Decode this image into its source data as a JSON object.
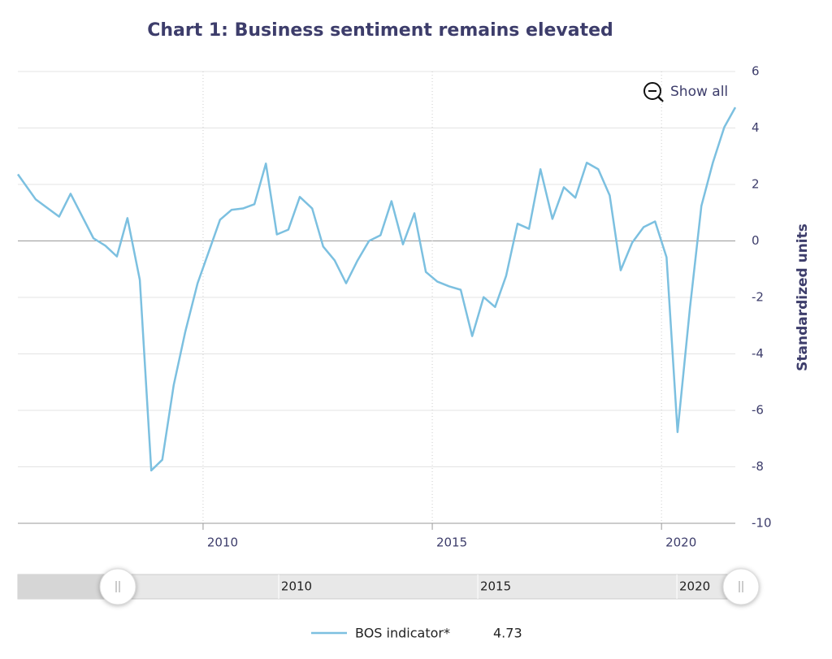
{
  "chart_data": {
    "type": "line",
    "title": "Chart 1: Business sentiment remains elevated",
    "y_axis_label": "Standardized units",
    "button": "Show all",
    "x": [
      2005.96,
      2006.35,
      2006.86,
      2007.11,
      2007.61,
      2007.87,
      2008.12,
      2008.35,
      2008.62,
      2008.87,
      2009.11,
      2009.36,
      2009.61,
      2009.88,
      2010.12,
      2010.37,
      2010.62,
      2010.87,
      2011.12,
      2011.37,
      2011.61,
      2011.86,
      2012.11,
      2012.38,
      2012.62,
      2012.87,
      2013.12,
      2013.37,
      2013.62,
      2013.87,
      2014.11,
      2014.36,
      2014.61,
      2014.86,
      2015.11,
      2015.37,
      2015.62,
      2015.87,
      2016.12,
      2016.37,
      2016.61,
      2016.86,
      2017.11,
      2017.36,
      2017.62,
      2017.87,
      2018.12,
      2018.37,
      2018.62,
      2018.87,
      2019.11,
      2019.36,
      2019.61,
      2019.86,
      2020.11,
      2020.35,
      2020.62,
      2020.87,
      2021.12,
      2021.37,
      2021.61
    ],
    "series": [
      {
        "name": "BOS indicator*",
        "color": "#7cc0e0",
        "values": [
          2.36,
          1.47,
          0.86,
          1.67,
          0.09,
          -0.17,
          -0.55,
          0.81,
          -1.38,
          -8.13,
          -7.75,
          -5.1,
          -3.23,
          -1.5,
          -0.4,
          0.75,
          1.1,
          1.15,
          1.3,
          2.74,
          0.23,
          0.4,
          1.56,
          1.15,
          -0.2,
          -0.69,
          -1.5,
          -0.69,
          0.0,
          0.2,
          1.41,
          -0.12,
          0.98,
          -1.1,
          -1.44,
          -1.61,
          -1.73,
          -3.37,
          -1.99,
          -2.34,
          -1.24,
          0.61,
          0.43,
          2.54,
          0.78,
          1.9,
          1.53,
          2.77,
          2.54,
          1.61,
          -1.04,
          -0.06,
          0.49,
          0.69,
          -0.58,
          -6.77,
          -2.38,
          1.24,
          2.77,
          4.03,
          4.73
        ]
      }
    ],
    "xlim": [
      2005.96,
      2021.61
    ],
    "xticks": [
      2010,
      2015,
      2020
    ],
    "ylim": [
      -10,
      6
    ],
    "yticks": [
      -10,
      -8,
      -6,
      -4,
      -2,
      0,
      2,
      4,
      6
    ],
    "grid": true,
    "navigator": {
      "xlim": [
        2003.45,
        2021.61
      ]
    }
  }
}
